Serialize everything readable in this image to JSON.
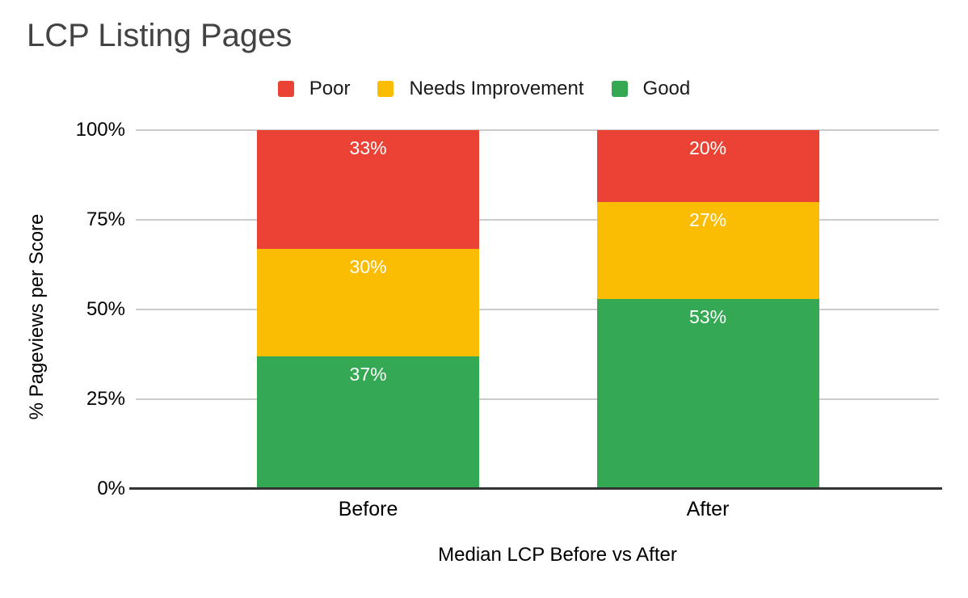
{
  "chart_data": {
    "type": "bar",
    "stacked": true,
    "title": "LCP Listing Pages",
    "xlabel": "Median LCP Before vs After",
    "ylabel": "% Pageviews per Score",
    "categories": [
      "Before",
      "After"
    ],
    "series": [
      {
        "name": "Good",
        "color": "#34a853",
        "values": [
          37,
          53
        ]
      },
      {
        "name": "Needs Improvement",
        "color": "#fbbc04",
        "values": [
          30,
          27
        ]
      },
      {
        "name": "Poor",
        "color": "#ea4335",
        "values": [
          33,
          20
        ]
      }
    ],
    "stack_order_bottom_to_top": [
      "Good",
      "Needs Improvement",
      "Poor"
    ],
    "legend_order": [
      "Poor",
      "Needs Improvement",
      "Good"
    ],
    "legend_position": "top",
    "data_label_suffix": "%",
    "data_label_color": "#ffffff",
    "y_ticks": [
      {
        "label": "0%",
        "value": 0
      },
      {
        "label": "25%",
        "value": 25
      },
      {
        "label": "50%",
        "value": 50
      },
      {
        "label": "75%",
        "value": 75
      },
      {
        "label": "100%",
        "value": 100
      }
    ],
    "ylim": [
      0,
      100
    ],
    "grid": true
  },
  "colors": {
    "title_text": "#434343",
    "axis_text": "#000000",
    "legend_text": "#1a1a1a",
    "gridline": "#cccccc",
    "axis_line": "#333333",
    "background": "#ffffff"
  }
}
